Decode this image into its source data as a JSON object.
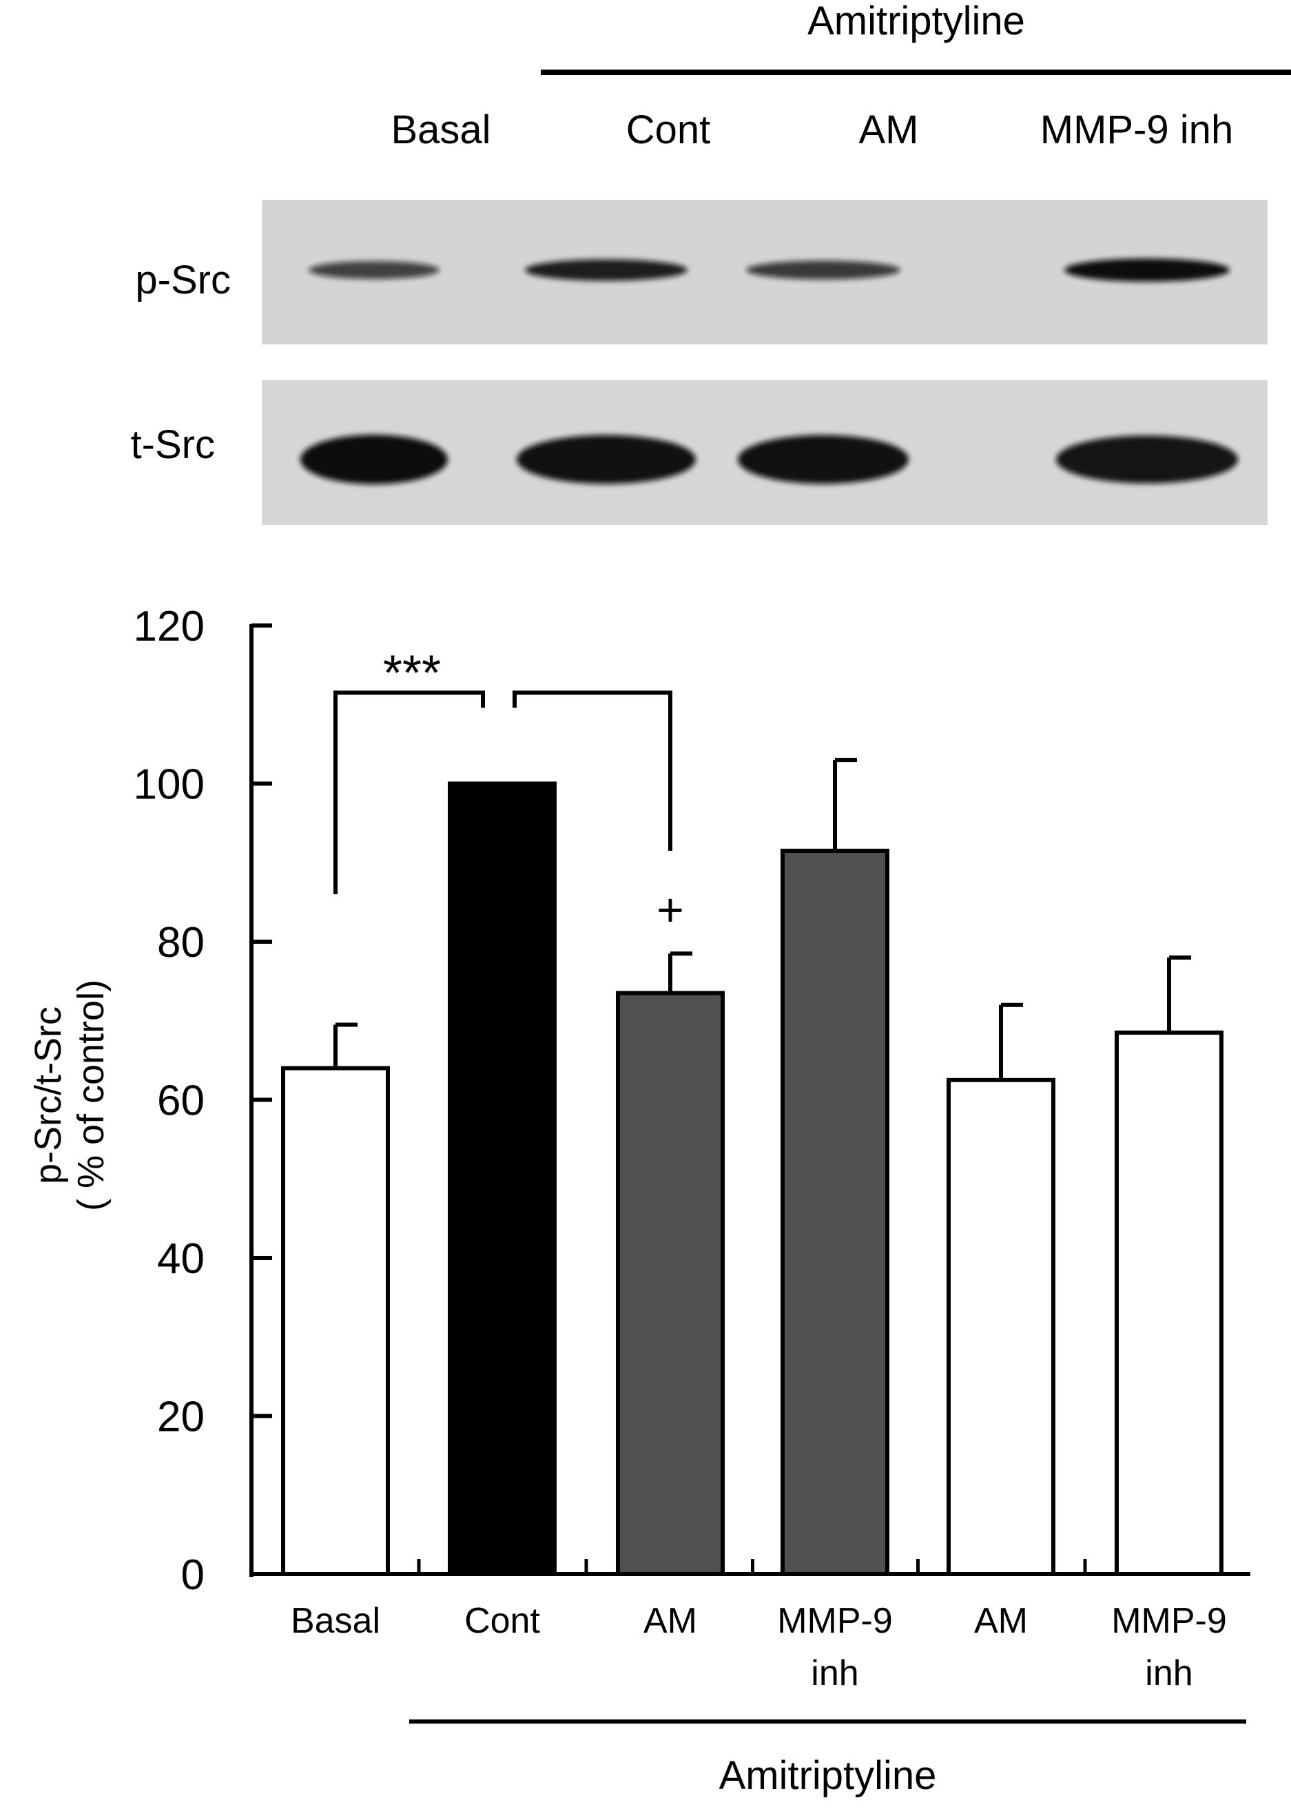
{
  "blot": {
    "group_label": "Amitriptyline",
    "lane_labels": [
      "Basal",
      "Cont",
      "AM",
      "MMP-9 inh"
    ],
    "rows": [
      {
        "label": "p-Src",
        "relative_intensity": [
          0.55,
          0.85,
          0.62,
          1.0
        ]
      },
      {
        "label": "t-Src",
        "relative_intensity": [
          1.0,
          0.97,
          0.97,
          0.93
        ]
      }
    ],
    "colors": {
      "membrane": "#d4d4d4",
      "band": "#111111"
    }
  },
  "chart_data": {
    "type": "bar",
    "title": "",
    "xlabel": "",
    "ylabel": "p-Src/t-Src",
    "ylabel_units": "( % of control)",
    "ylim": [
      0,
      120
    ],
    "yticks": [
      0,
      20,
      40,
      60,
      80,
      100,
      120
    ],
    "categories": [
      {
        "label": "Basal",
        "lines": [
          "Basal"
        ]
      },
      {
        "label": "Cont",
        "lines": [
          "Cont"
        ]
      },
      {
        "label": "AM",
        "lines": [
          "AM"
        ]
      },
      {
        "label": "MMP-9 inh",
        "lines": [
          "MMP-9",
          "inh"
        ]
      },
      {
        "label": "AM",
        "lines": [
          "AM"
        ]
      },
      {
        "label": "MMP-9 inh",
        "lines": [
          "MMP-9",
          "inh"
        ]
      }
    ],
    "values": [
      64,
      100,
      73.5,
      91.5,
      62.5,
      68.5
    ],
    "errors": [
      5.5,
      0,
      5,
      11.5,
      9.5,
      9.5
    ],
    "fills": [
      "#ffffff",
      "#000000",
      "#505050",
      "#505050",
      "#ffffff",
      "#ffffff"
    ],
    "group_label": "Amitriptyline",
    "group_span": [
      1,
      5
    ],
    "significance": [
      {
        "label": "***",
        "from": 0,
        "to": 1
      },
      {
        "label": "+",
        "from": 1,
        "to": 2
      }
    ],
    "grid": false
  }
}
